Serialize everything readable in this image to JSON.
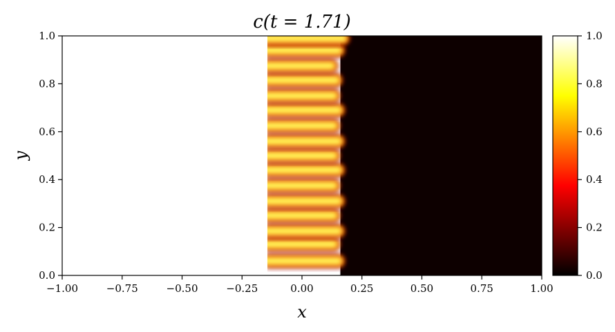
{
  "chart_data": {
    "type": "heatmap",
    "title": "c(t = 1.71)",
    "xlabel": "x",
    "ylabel": "y",
    "xlim": [
      -1.0,
      1.0
    ],
    "ylim": [
      0.0,
      1.0
    ],
    "xticks": [
      -1.0,
      -0.75,
      -0.5,
      -0.25,
      0.0,
      0.25,
      0.5,
      0.75,
      1.0
    ],
    "xtick_labels": [
      "−1.00",
      "−0.75",
      "−0.50",
      "−0.25",
      "0.00",
      "0.25",
      "0.50",
      "0.75",
      "1.00"
    ],
    "yticks": [
      0.0,
      0.2,
      0.4,
      0.6,
      0.8,
      1.0
    ],
    "ytick_labels": [
      "0.0",
      "0.2",
      "0.4",
      "0.6",
      "0.8",
      "1.0"
    ],
    "colorbar": {
      "range": [
        0.0,
        1.0
      ],
      "ticks": [
        0.0,
        0.2,
        0.4,
        0.6,
        0.8,
        1.0
      ],
      "tick_labels": [
        "0.0",
        "0.2",
        "0.4",
        "0.6",
        "0.8",
        "1.0"
      ],
      "colormap": "hot",
      "stops": [
        "#000000",
        "#550000",
        "#aa0000",
        "#ff0000",
        "#ff5500",
        "#ffaa00",
        "#ffff00",
        "#ffff80",
        "#ffffff"
      ]
    },
    "field": {
      "left_value": 1.0,
      "right_value": 0.0,
      "front_x_range": [
        -0.15,
        0.18
      ],
      "fingers": [
        {
          "y": 0.06,
          "x_end": 0.17
        },
        {
          "y": 0.13,
          "x_end": 0.15
        },
        {
          "y": 0.185,
          "x_end": 0.17
        },
        {
          "y": 0.25,
          "x_end": 0.15
        },
        {
          "y": 0.31,
          "x_end": 0.17
        },
        {
          "y": 0.375,
          "x_end": 0.15
        },
        {
          "y": 0.44,
          "x_end": 0.17
        },
        {
          "y": 0.5,
          "x_end": 0.15
        },
        {
          "y": 0.56,
          "x_end": 0.17
        },
        {
          "y": 0.625,
          "x_end": 0.15
        },
        {
          "y": 0.69,
          "x_end": 0.17
        },
        {
          "y": 0.75,
          "x_end": 0.15
        },
        {
          "y": 0.815,
          "x_end": 0.16
        },
        {
          "y": 0.875,
          "x_end": 0.14
        },
        {
          "y": 0.94,
          "x_end": 0.17
        },
        {
          "y": 0.99,
          "x_end": 0.19
        }
      ]
    }
  }
}
